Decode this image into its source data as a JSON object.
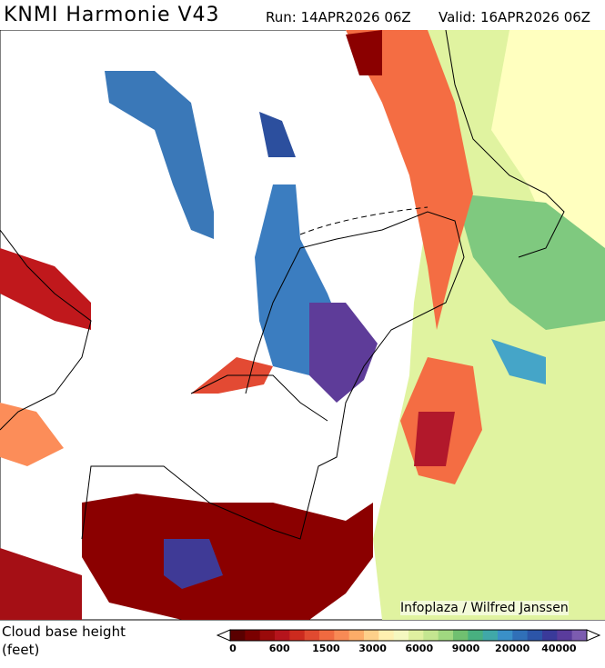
{
  "header": {
    "title": "KNMI Harmonie V43",
    "run": "Run: 14APR2026 06Z",
    "valid": "Valid: 16APR2026 06Z"
  },
  "map": {
    "credit": "Infoplaza / Wilfred Janssen"
  },
  "legend": {
    "title": "Cloud base height",
    "unit": "(feet)",
    "colors": [
      "#5a0000",
      "#7a0000",
      "#9a0a0a",
      "#b5141c",
      "#cc2a1e",
      "#e04a30",
      "#f06a40",
      "#f88a55",
      "#fcac68",
      "#fdd08a",
      "#fef0b0",
      "#f5f8c0",
      "#e0f0a0",
      "#c4e690",
      "#a0d880",
      "#70c070",
      "#48b080",
      "#40a8a8",
      "#3a90c8",
      "#3070b8",
      "#2c55a8",
      "#3a3a9a",
      "#5a3c9c",
      "#7c5cb0"
    ],
    "labels": [
      "0",
      "600",
      "1500",
      "3000",
      "6000",
      "9000",
      "20000",
      "40000"
    ]
  }
}
